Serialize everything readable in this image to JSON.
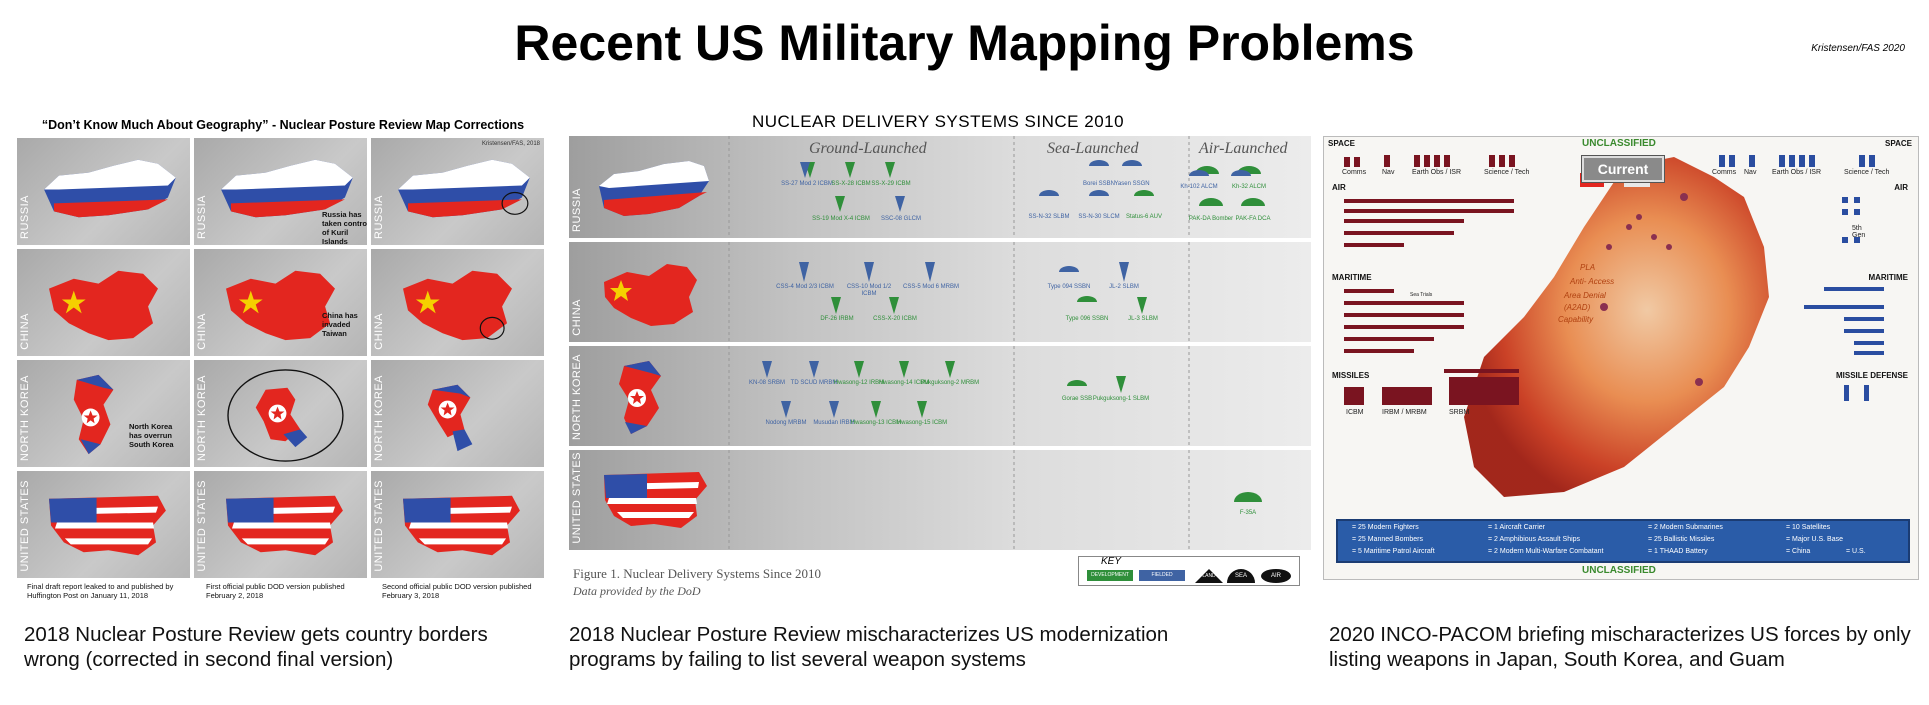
{
  "title": "Recent US Military Mapping Problems",
  "credit": "Kristensen/FAS 2020",
  "panel1": {
    "title": "“Don’t Know Much About Geography” - Nuclear Posture Review Map Corrections",
    "small_credit": "Kristensen/FAS, 2018",
    "rows": [
      "RUSSIA",
      "CHINA",
      "NORTH KOREA",
      "UNITED STATES"
    ],
    "notes": {
      "russia": "Russia has taken control of Kuril Islands",
      "china": "China has invaded Taiwan",
      "korea": "North Korea has overrun South Korea"
    },
    "footnotes": [
      "Final draft report leaked to and published by Huffington Post on January 11, 2018",
      "First official public DOD version published February 2, 2018",
      "Second official public DOD version published February 3, 2018"
    ],
    "caption": "2018 Nuclear Posture Review gets country borders wrong (corrected in second final version)"
  },
  "panel2": {
    "title": "NUCLEAR DELIVERY SYSTEMS SINCE 2010",
    "headers": [
      "Ground-Launched",
      "Sea-Launched",
      "Air-Launched"
    ],
    "rows": [
      "RUSSIA",
      "CHINA",
      "NORTH KOREA",
      "UNITED STATES"
    ],
    "weapons": {
      "russia": [
        "SS-27 Mod 2 ICBM",
        "SS-X-28 ICBM",
        "SS-X-29 ICBM",
        "SS-19 Mod X-4 ICBM",
        "SSC-08 GLCM",
        "Borei SSBN",
        "Yasen SSGN",
        "SS-N-32 SLBM",
        "SS-N-30 SLCM",
        "Status-6 AUV",
        "Kh-102 ALCM",
        "Kh-32 ALCM",
        "PAK-DA Bomber",
        "PAK-FA DCA"
      ],
      "china": [
        "CSS-4 Mod 2/3 ICBM",
        "CSS-10 Mod 1/2 ICBM",
        "CSS-5 Mod 6 MRBM",
        "DF-26 IRBM",
        "CSS-X-20 ICBM",
        "Type 094 SSBN",
        "JL-2 SLBM",
        "Type 096 SSBN",
        "JL-3 SLBM"
      ],
      "korea": [
        "KN-08 SRBM",
        "TD SCUD MRBM",
        "Hwasong-12 IRBM",
        "Hwasong-14 ICBM",
        "Pukguksong-2 MRBM",
        "Nodong MRBM",
        "Musudan IRBM",
        "Hwasong-13 ICBM",
        "Hwasong-15 ICBM",
        "Gorae SSB",
        "Pukguksong-1 SLBM"
      ],
      "us": [
        "F-35A"
      ]
    },
    "figure_caption": "Figure 1. Nuclear Delivery Systems Since 2010",
    "figure_sub": "Data provided by the DoD",
    "key": {
      "title": "KEY",
      "items": [
        "DEVELOPMENT",
        "FIELDED",
        "LAND",
        "SEA",
        "AIR"
      ]
    },
    "caption": "2018 Nuclear Posture Review mischaracterizes US modernization programs by failing to list several weapon systems"
  },
  "panel3": {
    "classification": "UNCLASSIFIED",
    "current": "Current",
    "sections": {
      "space": "SPACE",
      "air": "AIR",
      "maritime": "MARITIME",
      "missiles": "MISSILES",
      "missile_defense": "MISSILE DEFENSE"
    },
    "space_left": [
      "Comms",
      "Nav",
      "Earth Obs / ISR",
      "Science / Tech"
    ],
    "space_right": [
      "Comms",
      "Nav",
      "Earth Obs / ISR",
      "Science / Tech"
    ],
    "gen": "5th Gen",
    "sea_trials": "Sea Trials",
    "missile_labels": [
      "ICBM",
      "IRBM / MRBM",
      "SRBM"
    ],
    "pla_text": [
      "PLA",
      "Anti- Access",
      "Area Denial",
      "(A2AD)",
      "Capability"
    ],
    "legend": [
      "= 25 Modern Fighters",
      "= 25 Manned Bombers",
      "= 5 Maritime Patrol Aircraft",
      "= 1 Aircraft Carrier",
      "= 2 Amphibious Assault Ships",
      "= 2 Modern Multi-Warfare Combatant",
      "= 2 Modern Submarines",
      "= 25 Ballistic Missiles",
      "= 1 THAAD Battery",
      "= 10 Satellites",
      "= Major U.S. Base",
      "= China",
      "= U.S."
    ],
    "caption": "2020 INCO-PACOM briefing mischaracterizes US forces by only listing weapons in Japan, South Korea, and Guam"
  },
  "colors": {
    "china_red": "#e3261f",
    "russia_blue": "#2f4ea8",
    "dev_green": "#2f8f3a",
    "fielded_blue": "#3f63a3",
    "pla_red": "#c8381c",
    "legend_blue": "#2a5ca8"
  }
}
